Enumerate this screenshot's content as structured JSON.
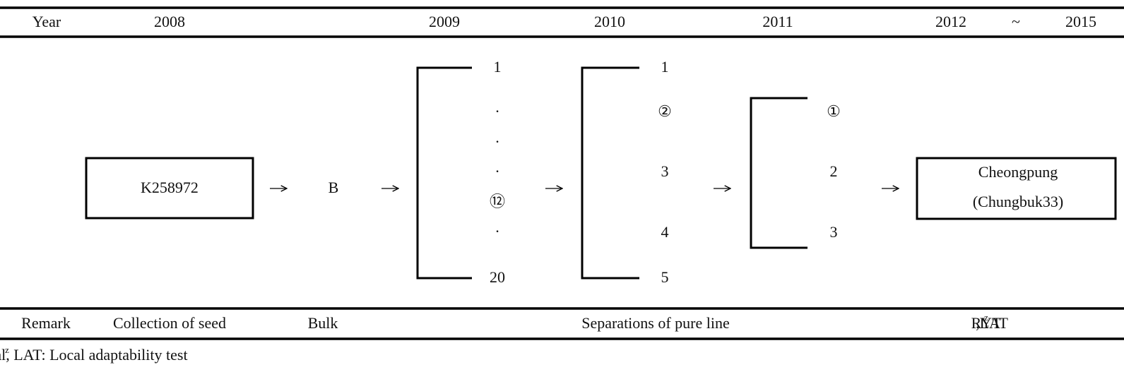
{
  "header": {
    "year": "Year",
    "y2008": "2008",
    "y2009": "2009",
    "y2010": "2010",
    "y2011": "2011",
    "y2012": "2012",
    "tilde": "~",
    "y2015": "2015"
  },
  "nodes": {
    "origin": "K258972",
    "bulk": "B",
    "lines2009": [
      "1",
      "·",
      "·",
      "·",
      "⑫",
      "·",
      "20"
    ],
    "lines2010": [
      "1",
      "②",
      "3",
      "4",
      "5"
    ],
    "lines2011": [
      "①",
      "2",
      "3"
    ],
    "final": [
      "Cheongpung",
      "(Chungbuk33)"
    ]
  },
  "remark": {
    "label": "Remark",
    "collection": "Collection of seed",
    "bulk": "Bulk",
    "separation": "Separations of pure line",
    "ryt": "RYT",
    "ryt_sup": "z",
    "lat": ",LAT"
  },
  "footnote": {
    "sup": "z",
    "text": "RYT: Replicated yield trial, LAT: Local adaptability test"
  }
}
